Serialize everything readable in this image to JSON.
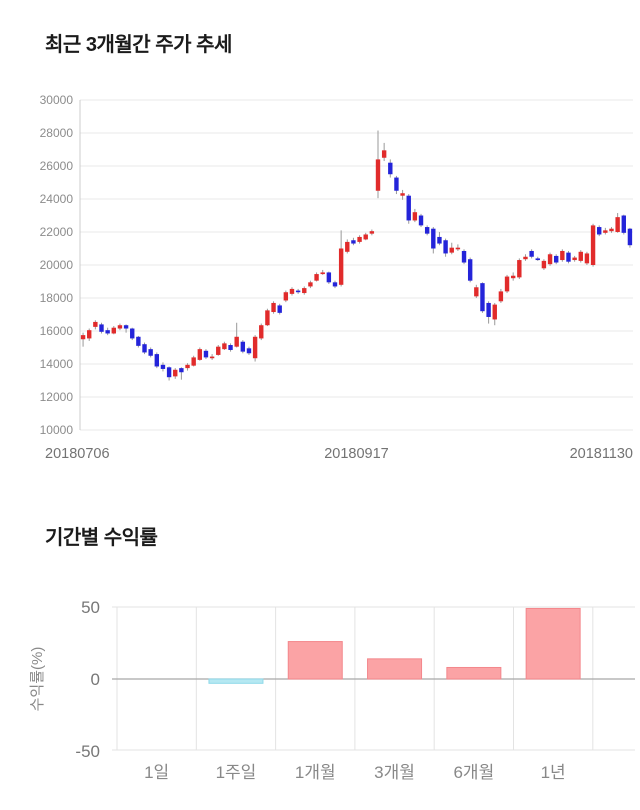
{
  "chart_data": [
    {
      "type": "candlestick",
      "title": "최근 3개월간 주가 추세",
      "x_tick_labels": [
        "20180706",
        "20180917",
        "20181130"
      ],
      "ylim": [
        10000,
        30000
      ],
      "y_ticks": [
        30000,
        28000,
        26000,
        24000,
        22000,
        20000,
        18000,
        16000,
        14000,
        12000,
        10000
      ],
      "grid": true,
      "legend": "none",
      "colors": {
        "up": "#e12b2b",
        "down": "#2424d9",
        "wick": "#999999",
        "grid": "#eaeaea",
        "axis": "#cccccc"
      },
      "candles_format": [
        "open",
        "high",
        "low",
        "close"
      ],
      "candles": [
        [
          15500,
          15900,
          15050,
          15750
        ],
        [
          15550,
          16150,
          15400,
          16050
        ],
        [
          16250,
          16650,
          16100,
          16550
        ],
        [
          16400,
          16500,
          15850,
          15950
        ],
        [
          16050,
          16200,
          15750,
          15850
        ],
        [
          15850,
          16300,
          15800,
          16200
        ],
        [
          16150,
          16450,
          16050,
          16350
        ],
        [
          16350,
          16400,
          15900,
          16150
        ],
        [
          16150,
          16200,
          15450,
          15550
        ],
        [
          15650,
          15700,
          15000,
          15100
        ],
        [
          15200,
          15300,
          14600,
          14700
        ],
        [
          14900,
          15000,
          14400,
          14500
        ],
        [
          14600,
          14700,
          13750,
          13850
        ],
        [
          13950,
          14100,
          13550,
          13700
        ],
        [
          13800,
          13850,
          13000,
          13200
        ],
        [
          13250,
          13750,
          13100,
          13650
        ],
        [
          13750,
          13800,
          13050,
          13500
        ],
        [
          13750,
          14050,
          13600,
          13950
        ],
        [
          13900,
          14500,
          13850,
          14400
        ],
        [
          14250,
          15000,
          14200,
          14900
        ],
        [
          14800,
          14900,
          14300,
          14400
        ],
        [
          14350,
          14600,
          14250,
          14450
        ],
        [
          14550,
          15150,
          14500,
          15050
        ],
        [
          14900,
          15350,
          14850,
          15250
        ],
        [
          15150,
          15250,
          14750,
          14850
        ],
        [
          15050,
          16500,
          15000,
          15650
        ],
        [
          15350,
          15450,
          14650,
          14750
        ],
        [
          14950,
          15050,
          14550,
          14650
        ],
        [
          14350,
          15750,
          14150,
          15650
        ],
        [
          15550,
          16450,
          15450,
          16350
        ],
        [
          16350,
          17350,
          16300,
          17250
        ],
        [
          17150,
          17800,
          17050,
          17700
        ],
        [
          17550,
          17650,
          17000,
          17100
        ],
        [
          17850,
          18450,
          17750,
          18350
        ],
        [
          18250,
          18650,
          18150,
          18550
        ],
        [
          18450,
          18550,
          18250,
          18350
        ],
        [
          18300,
          18700,
          18200,
          18600
        ],
        [
          18700,
          19050,
          18600,
          18950
        ],
        [
          19050,
          19550,
          19000,
          19450
        ],
        [
          19450,
          19700,
          19400,
          19550
        ],
        [
          19550,
          19600,
          18850,
          18950
        ],
        [
          18950,
          19050,
          18600,
          18700
        ],
        [
          18800,
          22100,
          18700,
          21000
        ],
        [
          20800,
          21550,
          20700,
          21400
        ],
        [
          21500,
          21650,
          21200,
          21300
        ],
        [
          21400,
          21800,
          21300,
          21700
        ],
        [
          21550,
          21950,
          21500,
          21850
        ],
        [
          21900,
          22150,
          21800,
          22050
        ],
        [
          24500,
          28150,
          24050,
          26400
        ],
        [
          26500,
          27400,
          26300,
          26950
        ],
        [
          26200,
          26400,
          25300,
          25500
        ],
        [
          25300,
          25400,
          24300,
          24500
        ],
        [
          24200,
          24550,
          23950,
          24350
        ],
        [
          24200,
          24300,
          22500,
          22700
        ],
        [
          22700,
          23400,
          22600,
          23200
        ],
        [
          23000,
          23100,
          22300,
          22400
        ],
        [
          22300,
          22400,
          21800,
          21900
        ],
        [
          22200,
          22300,
          20700,
          21000
        ],
        [
          21700,
          22000,
          21200,
          21300
        ],
        [
          21500,
          21600,
          20500,
          20700
        ],
        [
          20750,
          21350,
          20650,
          21050
        ],
        [
          20950,
          21250,
          20850,
          21050
        ],
        [
          20850,
          20950,
          20050,
          20150
        ],
        [
          20350,
          20450,
          18950,
          19050
        ],
        [
          18100,
          18800,
          18000,
          18650
        ],
        [
          18900,
          18950,
          17100,
          17200
        ],
        [
          17700,
          17800,
          16450,
          16850
        ],
        [
          16700,
          17700,
          16350,
          17600
        ],
        [
          17800,
          18550,
          17700,
          18400
        ],
        [
          18400,
          19400,
          18300,
          19300
        ],
        [
          19200,
          19550,
          19050,
          19350
        ],
        [
          19250,
          20400,
          19150,
          20300
        ],
        [
          20350,
          20650,
          20250,
          20500
        ],
        [
          20850,
          20950,
          20400,
          20500
        ],
        [
          20400,
          20500,
          20250,
          20300
        ],
        [
          19800,
          20350,
          19700,
          20250
        ],
        [
          20050,
          20750,
          19950,
          20650
        ],
        [
          20550,
          20650,
          20050,
          20150
        ],
        [
          20300,
          20950,
          20200,
          20850
        ],
        [
          20750,
          20850,
          20100,
          20200
        ],
        [
          20300,
          20550,
          20200,
          20450
        ],
        [
          20250,
          20900,
          20150,
          20800
        ],
        [
          20100,
          20800,
          20000,
          20700
        ],
        [
          20000,
          22500,
          19900,
          22400
        ],
        [
          22300,
          22400,
          21750,
          21850
        ],
        [
          21950,
          22250,
          21850,
          22100
        ],
        [
          22050,
          22300,
          21950,
          22200
        ],
        [
          22000,
          23150,
          21950,
          22900
        ],
        [
          23000,
          23050,
          21850,
          21950
        ],
        [
          22200,
          22250,
          21050,
          21200
        ]
      ]
    },
    {
      "type": "bar",
      "title": "기간별 수익률",
      "categories": [
        "1일",
        "1주일",
        "1개월",
        "3개월",
        "6개월",
        "1년"
      ],
      "values": [
        0,
        -3,
        26,
        14,
        8,
        49
      ],
      "ylabel": "수익률(%)",
      "xlabel": "",
      "ylim": [
        -50,
        50
      ],
      "y_ticks": [
        50,
        0,
        -50
      ],
      "grid": true,
      "legend": "none",
      "colors": {
        "positive": "#fba3a5",
        "positive_border": "#f3878c",
        "negative": "#b5e8f2",
        "negative_border": "#8fd9e9",
        "grid": "#e3e3e3",
        "zero_line": "#a8a8a8"
      }
    }
  ]
}
